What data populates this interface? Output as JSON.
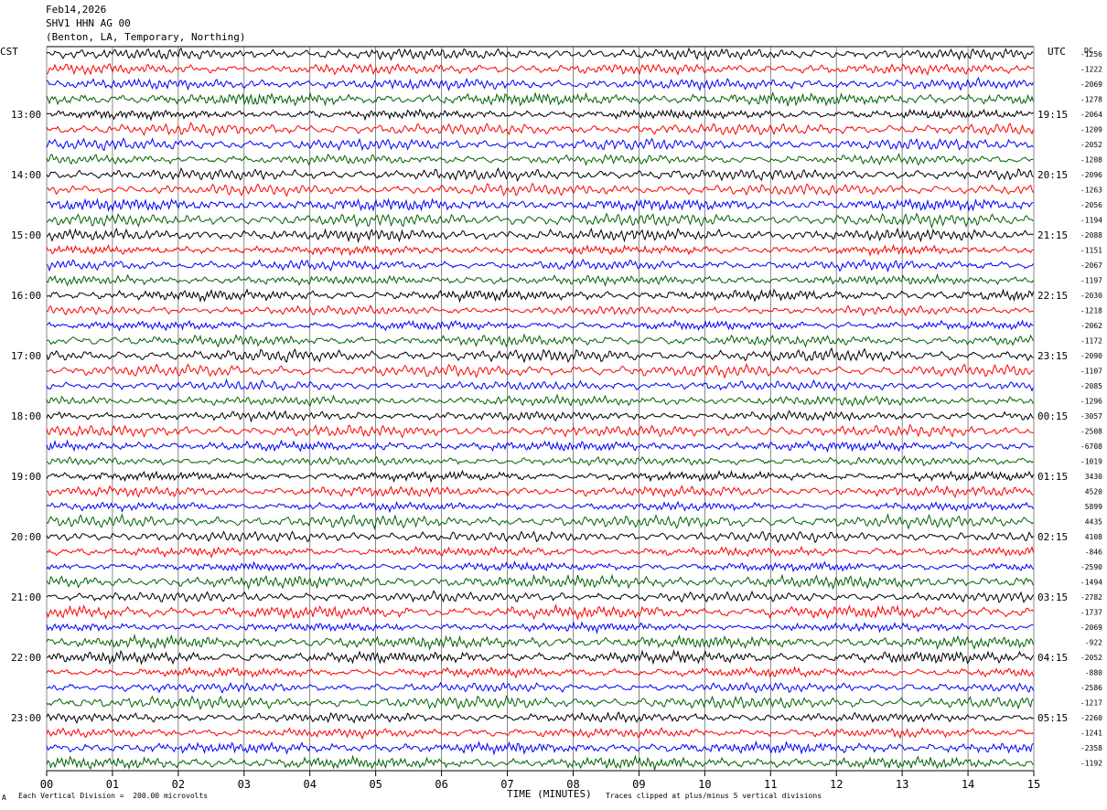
{
  "header": {
    "date": "Feb14,2026",
    "station": "SHV1 HHN AG 00",
    "location": "(Benton, LA, Temporary, Northing)"
  },
  "left_tz": "CST",
  "right_tz": "UTC",
  "dc_label": "DC",
  "footer": {
    "scale_text": "Each Vertical Division =  200.00 microvolts",
    "clip_text": "Traces clipped at plus/minus 5 vertical divisions",
    "mark": "A"
  },
  "chart_data": {
    "type": "line",
    "xlabel": "TIME (MINUTES)",
    "xlim": [
      0,
      15
    ],
    "x_ticks": [
      "00",
      "01",
      "02",
      "03",
      "04",
      "05",
      "06",
      "07",
      "08",
      "09",
      "10",
      "11",
      "12",
      "13",
      "14",
      "15"
    ],
    "left_hour_labels": [
      "13:00",
      "14:00",
      "15:00",
      "16:00",
      "17:00",
      "18:00",
      "19:00",
      "20:00",
      "21:00",
      "22:00",
      "23:00"
    ],
    "right_hour_labels": [
      "19:15",
      "20:15",
      "21:15",
      "22:15",
      "23:15",
      "00:15",
      "01:15",
      "02:15",
      "03:15",
      "04:15",
      "05:15"
    ],
    "trace_colors": [
      "#000000",
      "#ff0000",
      "#0000ff",
      "#006400"
    ],
    "dc_values": [
      "-1256",
      "-1222",
      "-2069",
      "-1278",
      "-2064",
      "-1209",
      "-2052",
      "-1208",
      "-2096",
      "-1263",
      "-2056",
      "-1194",
      "-2088",
      "-1151",
      "-2067",
      "-1197",
      "-2030",
      "-1218",
      "-2062",
      "-1172",
      "-2090",
      "-1107",
      "-2085",
      "-1296",
      "-3057",
      "-2508",
      "-6708",
      "-1019",
      "3430",
      "4520",
      "5899",
      "4435",
      "4108",
      "-846",
      "-2590",
      "-1494",
      "-2782",
      "-1737",
      "-2069",
      "-922",
      "-2052",
      "-880",
      "-2586",
      "-1217",
      "-2260",
      "-1241",
      "-2358",
      "-1192"
    ],
    "series": [
      {
        "name": "trace",
        "traces": 48,
        "minutes_per_trace": 15
      }
    ]
  }
}
